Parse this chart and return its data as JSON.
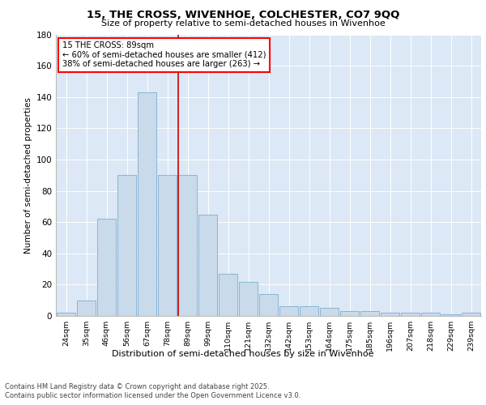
{
  "title1": "15, THE CROSS, WIVENHOE, COLCHESTER, CO7 9QQ",
  "title2": "Size of property relative to semi-detached houses in Wivenhoe",
  "xlabel": "Distribution of semi-detached houses by size in Wivenhoe",
  "ylabel": "Number of semi-detached properties",
  "footer1": "Contains HM Land Registry data © Crown copyright and database right 2025.",
  "footer2": "Contains public sector information licensed under the Open Government Licence v3.0.",
  "annotation_title": "15 THE CROSS: 89sqm",
  "annotation_line1": "← 60% of semi-detached houses are smaller (412)",
  "annotation_line2": "38% of semi-detached houses are larger (263) →",
  "bar_color": "#c9daea",
  "bar_edge_color": "#8ab4d4",
  "vline_color": "#cc0000",
  "bg_color": "#dce8f5",
  "categories": [
    "24sqm",
    "35sqm",
    "46sqm",
    "56sqm",
    "67sqm",
    "78sqm",
    "89sqm",
    "99sqm",
    "110sqm",
    "121sqm",
    "132sqm",
    "142sqm",
    "153sqm",
    "164sqm",
    "175sqm",
    "185sqm",
    "196sqm",
    "207sqm",
    "218sqm",
    "229sqm",
    "239sqm"
  ],
  "values": [
    2,
    10,
    62,
    90,
    143,
    90,
    90,
    65,
    27,
    22,
    14,
    6,
    6,
    5,
    3,
    3,
    2,
    2,
    2,
    1,
    2
  ],
  "vline_idx": 6,
  "ylim": [
    0,
    180
  ],
  "yticks": [
    0,
    20,
    40,
    60,
    80,
    100,
    120,
    140,
    160,
    180
  ]
}
